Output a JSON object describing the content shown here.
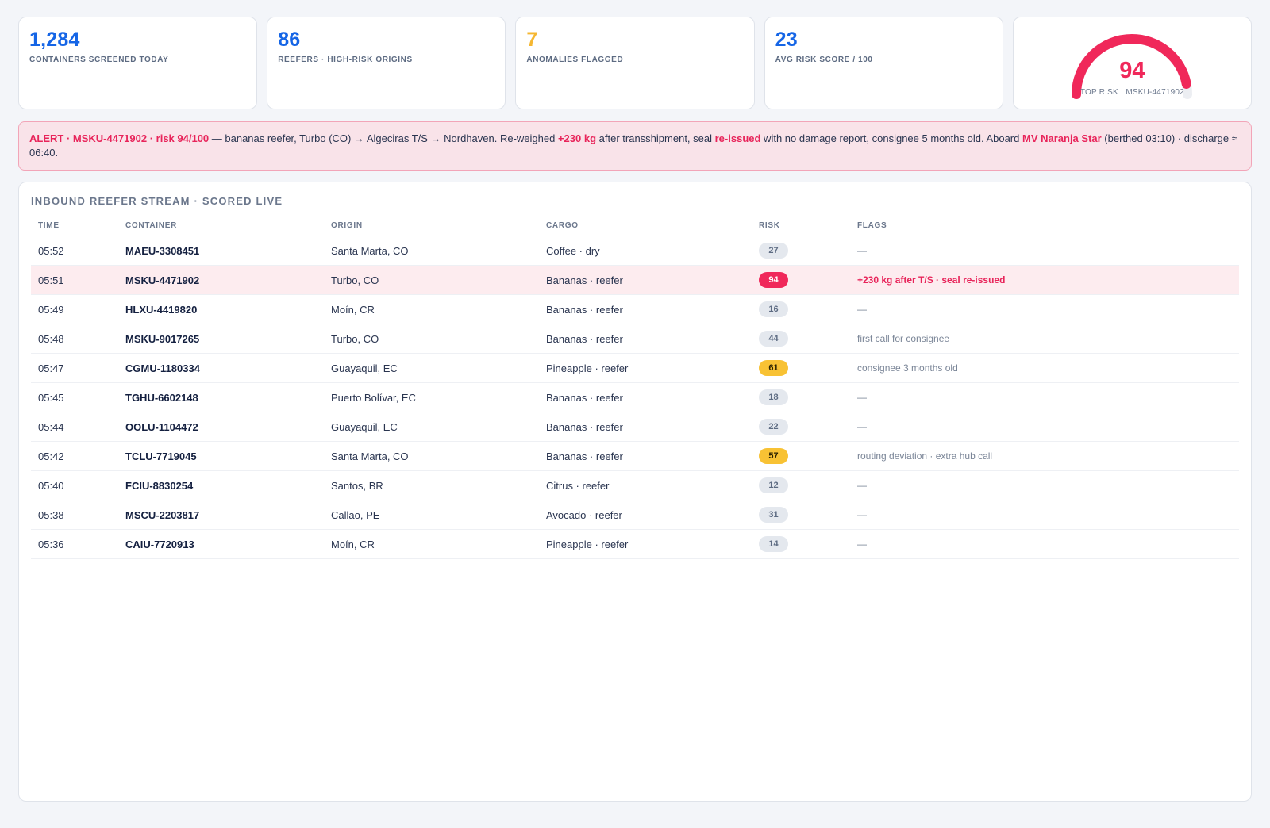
{
  "kpis": [
    {
      "value": "1,284",
      "label": "CONTAINERS SCREENED TODAY",
      "color": "#1565e6"
    },
    {
      "value": "86",
      "label": "REEFERS · HIGH-RISK ORIGINS",
      "color": "#1565e6"
    },
    {
      "value": "7",
      "label": "ANOMALIES FLAGGED",
      "color": "#f5b731"
    },
    {
      "value": "23",
      "label": "AVG RISK SCORE / 100",
      "color": "#1565e6"
    }
  ],
  "gauge": {
    "value": "94",
    "caption": "TOP RISK · MSKU-4471902",
    "fraction": 0.94,
    "color": "#f0285a"
  },
  "alert": {
    "lead": "ALERT · MSKU-4471902 · risk 94/100",
    "text1": " — bananas reefer, Turbo (CO) → Algeciras T/S → Nordhaven. Re-weighed ",
    "weight": "+230 kg",
    "text2": " after transshipment, seal ",
    "seal": "re-issued",
    "text3": " with no damage report, consignee 5 months old. Aboard ",
    "vessel": "MV Naranja Star",
    "text4": " (berthed 03:10) · discharge ≈ 06:40."
  },
  "stream": {
    "title": "INBOUND REEFER STREAM · SCORED LIVE",
    "columns": {
      "time": "TIME",
      "container": "CONTAINER",
      "origin": "ORIGIN",
      "cargo": "CARGO",
      "risk": "RISK",
      "flags": "FLAGS"
    },
    "rows": [
      {
        "time": "05:52",
        "container": "MAEU-3308451",
        "origin": "Santa Marta, CO",
        "cargo": "Coffee · dry",
        "risk": "27",
        "level": "low",
        "flags": "—"
      },
      {
        "time": "05:51",
        "container": "MSKU-4471902",
        "origin": "Turbo, CO",
        "cargo": "Bananas · reefer",
        "risk": "94",
        "level": "high",
        "flags": "+230 kg after T/S · seal re-issued"
      },
      {
        "time": "05:49",
        "container": "HLXU-4419820",
        "origin": "Moín, CR",
        "cargo": "Bananas · reefer",
        "risk": "16",
        "level": "low",
        "flags": "—"
      },
      {
        "time": "05:48",
        "container": "MSKU-9017265",
        "origin": "Turbo, CO",
        "cargo": "Bananas · reefer",
        "risk": "44",
        "level": "low",
        "flags": "first call for consignee"
      },
      {
        "time": "05:47",
        "container": "CGMU-1180334",
        "origin": "Guayaquil, EC",
        "cargo": "Pineapple · reefer",
        "risk": "61",
        "level": "mid",
        "flags": "consignee 3 months old"
      },
      {
        "time": "05:45",
        "container": "TGHU-6602148",
        "origin": "Puerto Bolívar, EC",
        "cargo": "Bananas · reefer",
        "risk": "18",
        "level": "low",
        "flags": "—"
      },
      {
        "time": "05:44",
        "container": "OOLU-1104472",
        "origin": "Guayaquil, EC",
        "cargo": "Bananas · reefer",
        "risk": "22",
        "level": "low",
        "flags": "—"
      },
      {
        "time": "05:42",
        "container": "TCLU-7719045",
        "origin": "Santa Marta, CO",
        "cargo": "Bananas · reefer",
        "risk": "57",
        "level": "mid",
        "flags": "routing deviation · extra hub call"
      },
      {
        "time": "05:40",
        "container": "FCIU-8830254",
        "origin": "Santos, BR",
        "cargo": "Citrus · reefer",
        "risk": "12",
        "level": "low",
        "flags": "—"
      },
      {
        "time": "05:38",
        "container": "MSCU-2203817",
        "origin": "Callao, PE",
        "cargo": "Avocado · reefer",
        "risk": "31",
        "level": "low",
        "flags": "—"
      },
      {
        "time": "05:36",
        "container": "CAIU-7720913",
        "origin": "Moín, CR",
        "cargo": "Pineapple · reefer",
        "risk": "14",
        "level": "low",
        "flags": "—"
      }
    ]
  }
}
